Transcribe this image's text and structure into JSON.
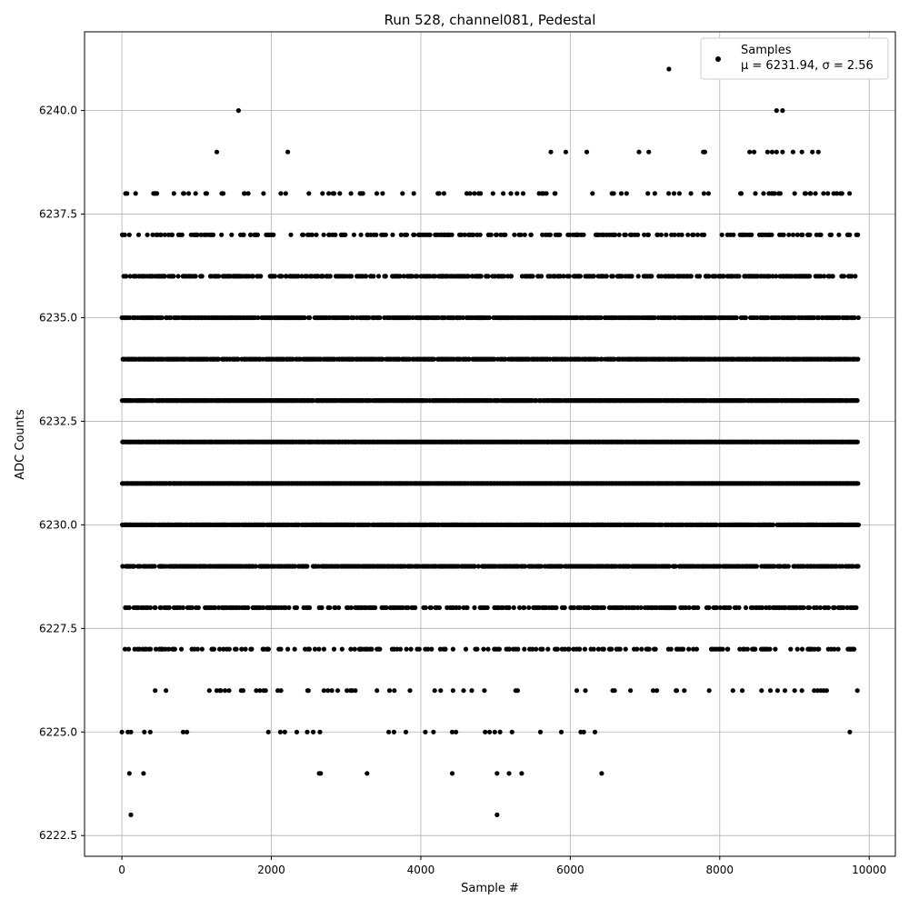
{
  "chart_data": {
    "type": "scatter",
    "title": "Run 528, channel081, Pedestal",
    "xlabel": "Sample #",
    "ylabel": "ADC Counts",
    "xlim": [
      -500,
      10350
    ],
    "ylim": [
      6222.0,
      6241.9
    ],
    "xticks": [
      0,
      2000,
      4000,
      6000,
      8000,
      10000
    ],
    "yticks": [
      6222.5,
      6225.0,
      6227.5,
      6230.0,
      6232.5,
      6235.0,
      6237.5,
      6240.0
    ],
    "xtick_labels": [
      "0",
      "2000",
      "4000",
      "6000",
      "8000",
      "10000"
    ],
    "ytick_labels": [
      "6222.5",
      "6225.0",
      "6227.5",
      "6230.0",
      "6232.5",
      "6235.0",
      "6237.5",
      "6240.0"
    ],
    "grid": true,
    "legend_position": "top-right",
    "marker_color": "#000000",
    "series": [
      {
        "name": "Samples",
        "stats_label": "μ = 6231.94, σ = 2.56",
        "n_samples": 9850,
        "level_counts": [
          {
            "y": 6223,
            "x": [
              120,
              5020
            ]
          },
          {
            "y": 6224,
            "x": [
              100,
              290,
              2640,
              2660,
              3280,
              4420,
              5020,
              5180,
              5350,
              6420
            ]
          },
          {
            "y": 6225,
            "x": [
              0,
              80,
              120,
              300,
              380,
              820,
              870,
              1960,
              2120,
              2180,
              2340,
              2480,
              2560,
              2650,
              3570,
              3640,
              3800,
              4060,
              4170,
              4420,
              4470,
              4860,
              4920,
              4990,
              5060,
              5220,
              5600,
              5880,
              6140,
              6180,
              6330,
              9740
            ]
          },
          {
            "y": 6224.0,
            "x": []
          }
        ],
        "level_density": [
          {
            "y": 6226,
            "fraction": 0.1
          },
          {
            "y": 6227,
            "fraction": 0.28
          },
          {
            "y": 6228,
            "fraction": 0.45
          },
          {
            "y": 6229,
            "fraction": 0.7
          },
          {
            "y": 6230,
            "fraction": 0.88
          },
          {
            "y": 6231,
            "fraction": 1.0
          },
          {
            "y": 6232,
            "fraction": 1.0
          },
          {
            "y": 6233,
            "fraction": 0.95
          },
          {
            "y": 6234,
            "fraction": 0.85
          },
          {
            "y": 6235,
            "fraction": 0.7
          },
          {
            "y": 6236,
            "fraction": 0.45
          },
          {
            "y": 6237,
            "fraction": 0.28
          },
          {
            "y": 6238,
            "fraction": 0.16
          }
        ],
        "sparse_levels": [
          {
            "y": 6239,
            "x": [
              1270,
              2220,
              5740,
              5940,
              6220,
              6920,
              7050,
              7780,
              7800,
              8400,
              8460,
              8640,
              8700,
              8760,
              8840,
              8980,
              9100,
              9240,
              9320
            ]
          },
          {
            "y": 6240,
            "x": [
              1560,
              8760,
              8840
            ]
          },
          {
            "y": 6241,
            "x": [
              7320
            ]
          }
        ]
      }
    ]
  }
}
